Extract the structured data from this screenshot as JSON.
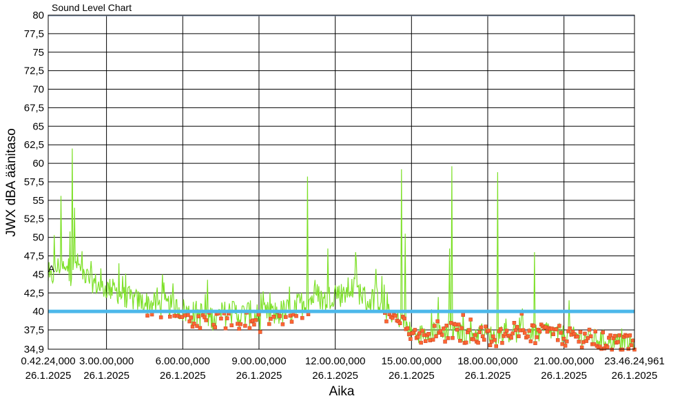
{
  "chart_data": {
    "type": "line",
    "title": "Sound Level Chart",
    "xlabel": "Aika",
    "ylabel": "JWX dBA äänitaso",
    "ylim": [
      34.9,
      80
    ],
    "xlim": [
      "26.1.2025 0.42.24,000",
      "26.1.2025 23.46.24,961"
    ],
    "y_ticks": [
      "34,9",
      "37,5",
      "40",
      "42,5",
      "45",
      "47,5",
      "50",
      "52,5",
      "55",
      "57,5",
      "60",
      "62,5",
      "65",
      "67,5",
      "70",
      "72,5",
      "75",
      "77,5",
      "80"
    ],
    "x_ticks": [
      {
        "time": "0.42.24,000",
        "date": "26.1.2025"
      },
      {
        "time": "3.00.00,000",
        "date": "26.1.2025"
      },
      {
        "time": "6.00.00,000",
        "date": "26.1.2025"
      },
      {
        "time": "9.00.00,000",
        "date": "26.1.2025"
      },
      {
        "time": "12.00.00,000",
        "date": "26.1.2025"
      },
      {
        "time": "15.00.00,000",
        "date": "26.1.2025"
      },
      {
        "time": "18.00.00,000",
        "date": "26.1.2025"
      },
      {
        "time": "21.00.00,000",
        "date": "26.1.2025"
      },
      {
        "time": "23.46.24,961",
        "date": "26.1.2025"
      }
    ],
    "threshold": {
      "value": 40,
      "color": "#4cb8ea"
    },
    "marker_label": "A",
    "grid": true,
    "colors": {
      "series": "#7de028",
      "points": "#ff6633",
      "threshold": "#4cb8ea"
    },
    "series": [
      {
        "x_hours": [
          0.71,
          0.9,
          1.0,
          1.2,
          1.4,
          1.5,
          1.6,
          1.8,
          2.0,
          2.2,
          2.4,
          2.6,
          2.8,
          3.0,
          3.2,
          3.4,
          3.6,
          3.8,
          4.0,
          4.3,
          4.6,
          5.0,
          5.5,
          6.0,
          6.3,
          6.6,
          7.0,
          7.3,
          7.6,
          8.0,
          8.3,
          8.6,
          9.0,
          9.3,
          9.6,
          10.0,
          10.3,
          10.6,
          11.0,
          11.3,
          11.6,
          12.0,
          12.3,
          12.6,
          13.0,
          13.3,
          13.6,
          14.0,
          14.3,
          14.6,
          15.0,
          15.3,
          15.6,
          16.0,
          16.3,
          16.6,
          17.0,
          17.3,
          17.6,
          18.0,
          18.3,
          18.6,
          19.0,
          19.3,
          19.6,
          20.0,
          20.3,
          20.6,
          21.0,
          21.3,
          21.6,
          22.0,
          22.3,
          22.6,
          23.0,
          23.3,
          23.6,
          23.77
        ],
        "values": [
          43.5,
          44.8,
          45.5,
          46.2,
          45.0,
          45.8,
          44.8,
          46.5,
          45.5,
          44.5,
          44.0,
          43.5,
          43.0,
          43.0,
          42.8,
          42.5,
          42.0,
          41.8,
          41.5,
          41.2,
          41.0,
          40.8,
          40.6,
          40.0,
          39.5,
          39.6,
          39.2,
          38.9,
          39.5,
          39.8,
          39.3,
          39.6,
          39.0,
          39.4,
          39.5,
          39.8,
          40.0,
          40.8,
          41.5,
          42.0,
          41.2,
          42.5,
          42.0,
          43.0,
          42.4,
          41.0,
          41.8,
          40.0,
          39.2,
          38.8,
          37.0,
          36.8,
          37.2,
          37.5,
          37.2,
          37.4,
          37.0,
          36.8,
          37.0,
          36.9,
          36.5,
          37.2,
          36.8,
          37.0,
          37.2,
          36.8,
          37.5,
          37.0,
          36.8,
          36.5,
          36.6,
          36.4,
          36.2,
          36.0,
          35.8,
          35.7,
          35.6,
          35.8
        ]
      }
    ],
    "peaks": [
      {
        "x_hours": 0.95,
        "value": 50.3
      },
      {
        "x_hours": 1.2,
        "value": 55.6
      },
      {
        "x_hours": 1.55,
        "value": 50.8
      },
      {
        "x_hours": 1.65,
        "value": 62.0
      },
      {
        "x_hours": 1.75,
        "value": 54.0
      },
      {
        "x_hours": 2.4,
        "value": 46.8
      },
      {
        "x_hours": 3.5,
        "value": 46.5
      },
      {
        "x_hours": 5.2,
        "value": 45.0
      },
      {
        "x_hours": 10.9,
        "value": 58.2
      },
      {
        "x_hours": 11.7,
        "value": 48.5
      },
      {
        "x_hours": 12.8,
        "value": 48.0
      },
      {
        "x_hours": 14.6,
        "value": 59.2
      },
      {
        "x_hours": 14.75,
        "value": 50.5
      },
      {
        "x_hours": 16.5,
        "value": 48.5
      },
      {
        "x_hours": 16.6,
        "value": 59.6
      },
      {
        "x_hours": 18.4,
        "value": 58.8
      },
      {
        "x_hours": 19.85,
        "value": 48.0
      },
      {
        "x_hours": 21.2,
        "value": 41.5
      }
    ]
  }
}
